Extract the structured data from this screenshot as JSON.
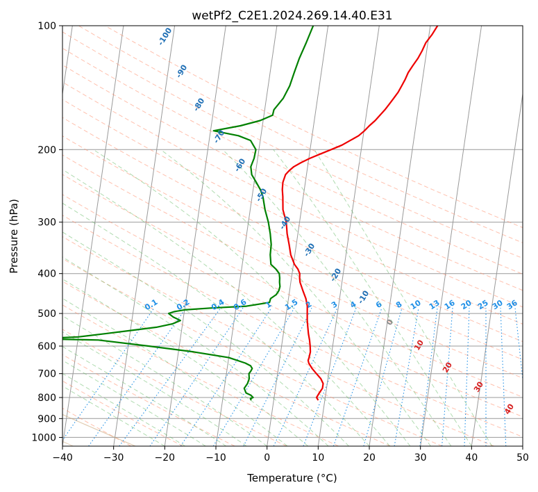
{
  "chart_data": {
    "type": "line",
    "title": "wetPf2_C2E1.2024.269.14.40.E31",
    "xlabel": "Temperature (°C)",
    "ylabel": "Pressure (hPa)",
    "xlim": [
      -40,
      50
    ],
    "ylim": [
      1050,
      100
    ],
    "y_scale": "log",
    "grid": true,
    "x_ticks": [
      -40,
      -30,
      -20,
      -10,
      0,
      10,
      20,
      30,
      40,
      50
    ],
    "y_ticks": [
      100,
      200,
      300,
      400,
      500,
      600,
      700,
      800,
      900,
      1000
    ],
    "colors": {
      "temperature": "#ee0000",
      "dewpoint": "#008000",
      "isotherm": "#999999",
      "dry_adiabat": "#ff8c69",
      "moist_adiabat": "#5fb85f",
      "mixing_ratio": "#1f8fe6",
      "height_label": "#1f6fb5",
      "lcl_label": "#d62020",
      "frost_curve": "#c8a070"
    },
    "series": [
      {
        "key": "temperature",
        "pressure": [
          812,
          800,
          780,
          760,
          740,
          720,
          700,
          680,
          660,
          650,
          640,
          620,
          600,
          580,
          560,
          540,
          520,
          500,
          480,
          460,
          440,
          420,
          410,
          400,
          390,
          380,
          360,
          340,
          320,
          300,
          280,
          260,
          250,
          240,
          230,
          225,
          220,
          215,
          210,
          205,
          200,
          195,
          190,
          185,
          180,
          175,
          170,
          165,
          160,
          155,
          150,
          145,
          140,
          135,
          130,
          125,
          120,
          115,
          110,
          105,
          100
        ],
        "values": [
          8.7,
          8.3,
          8.7,
          9.2,
          9.2,
          8.6,
          7.6,
          6.6,
          5.8,
          5.6,
          5.7,
          5.8,
          5.6,
          5.3,
          4.9,
          4.6,
          4.3,
          4.1,
          3.9,
          3.4,
          2.6,
          1.8,
          1.6,
          1.5,
          1.0,
          0.2,
          -0.8,
          -1.4,
          -2.1,
          -2.6,
          -3.6,
          -4.0,
          -4.3,
          -4.4,
          -4.1,
          -3.5,
          -2.7,
          -1.4,
          0.2,
          2.1,
          4.1,
          6.1,
          7.6,
          9.1,
          10.1,
          10.9,
          11.9,
          12.7,
          13.5,
          14.2,
          14.9,
          15.6,
          16.1,
          16.6,
          17.0,
          17.7,
          18.5,
          19.1,
          19.6,
          20.6,
          21.4
        ]
      },
      {
        "key": "dewpoint",
        "pressure": [
          812,
          805,
          800,
          790,
          780,
          760,
          740,
          720,
          700,
          690,
          680,
          670,
          660,
          640,
          620,
          600,
          580,
          576,
          570,
          560,
          550,
          540,
          530,
          520,
          510,
          500,
          495,
          490,
          485,
          480,
          470,
          460,
          450,
          440,
          430,
          420,
          410,
          400,
          390,
          380,
          360,
          340,
          320,
          300,
          280,
          260,
          250,
          240,
          230,
          220,
          210,
          200,
          190,
          185,
          180,
          175,
          170,
          165,
          160,
          150,
          140,
          130,
          120,
          110,
          100
        ],
        "values": [
          -4.4,
          -4.6,
          -4.1,
          -4.6,
          -5.6,
          -6.1,
          -5.6,
          -5.4,
          -5.6,
          -5.3,
          -5.1,
          -5.5,
          -6.6,
          -10.0,
          -17.0,
          -26.0,
          -36.0,
          -48.0,
          -40.0,
          -35.0,
          -30.0,
          -25.0,
          -22.0,
          -20.5,
          -22.0,
          -23.0,
          -22.0,
          -20.0,
          -15.0,
          -8.0,
          -3.6,
          -3.5,
          -2.5,
          -2.1,
          -2.0,
          -2.2,
          -2.3,
          -2.5,
          -3.3,
          -4.4,
          -4.8,
          -4.9,
          -5.4,
          -6.1,
          -7.1,
          -7.9,
          -8.6,
          -9.6,
          -10.7,
          -11.1,
          -10.7,
          -10.6,
          -11.9,
          -14.4,
          -19.4,
          -14.3,
          -10.6,
          -8.3,
          -8.2,
          -6.7,
          -5.8,
          -5.3,
          -4.7,
          -3.8,
          -2.9
        ]
      }
    ],
    "dry_adiabat_labels": [
      "-100",
      "-90",
      "-80",
      "-70",
      "-60",
      "-50",
      "-40",
      "-30",
      "-20",
      "-10",
      "0",
      "10",
      "20",
      "30",
      "40"
    ],
    "mixing_ratio_labels": [
      "0.1",
      "0.2",
      "0.4",
      "0.6",
      "1",
      "1.5",
      "2",
      "3",
      "4",
      "6",
      "8",
      "10",
      "13",
      "16",
      "20",
      "25",
      "30",
      "36"
    ]
  }
}
